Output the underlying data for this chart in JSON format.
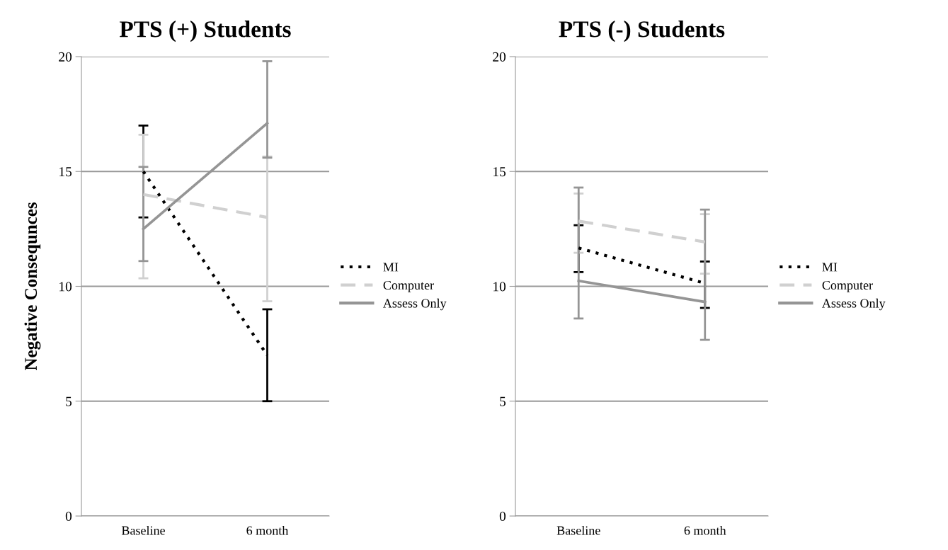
{
  "chart_data": [
    {
      "type": "line",
      "title": "PTS (+) Students",
      "ylabel": "Negative Consequnces",
      "categories": [
        "Baseline",
        "6 month"
      ],
      "ylim": [
        0,
        20
      ],
      "yticks": [
        0,
        5,
        10,
        15,
        20
      ],
      "grid": "y",
      "legend": "right",
      "marker": "none",
      "series": [
        {
          "name": "MI",
          "color": "#000000",
          "line_style": "dotted",
          "values": [
            15,
            7
          ],
          "errors": [
            2,
            2
          ]
        },
        {
          "name": "Computer",
          "color": "#d0d0d0",
          "line_style": "dashed",
          "values": [
            14,
            13
          ],
          "errors": [
            [
              10.35,
              16.6
            ],
            [
              9.35,
              15.65
            ]
          ]
        },
        {
          "name": "Assess Only",
          "color": "#959595",
          "line_style": "solid",
          "values": [
            12.5,
            17.1
          ],
          "errors": [
            [
              11.1,
              15.2
            ],
            [
              15.6,
              19.8
            ]
          ]
        }
      ]
    },
    {
      "type": "line",
      "title": "PTS (-) Students",
      "categories": [
        "Baseline",
        "6 month"
      ],
      "ylim": [
        0,
        20
      ],
      "yticks": [
        0,
        5,
        10,
        15,
        20
      ],
      "grid": "y",
      "legend": "right",
      "marker": "none",
      "series": [
        {
          "name": "MI",
          "color": "#000000",
          "line_style": "dotted",
          "values": [
            11.67,
            10.13
          ],
          "errors": [
            [
              10.62,
              12.66
            ],
            [
              9.06,
              11.08
            ]
          ]
        },
        {
          "name": "Computer",
          "color": "#d0d0d0",
          "line_style": "dashed",
          "values": [
            12.84,
            11.93
          ],
          "errors": [
            [
              11.46,
              14.04
            ],
            [
              10.55,
              13.14
            ]
          ]
        },
        {
          "name": "Assess Only",
          "color": "#959595",
          "line_style": "solid",
          "values": [
            10.24,
            9.32
          ],
          "errors": [
            [
              8.6,
              14.3
            ],
            [
              7.67,
              13.34
            ]
          ]
        }
      ]
    }
  ]
}
